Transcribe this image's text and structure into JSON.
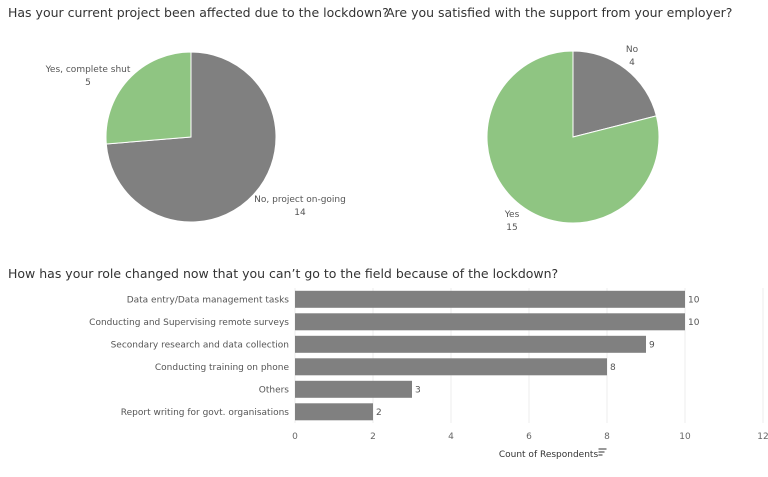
{
  "chart_data": [
    {
      "type": "pie",
      "title": "Has your current project been affected due to the lockdown?",
      "slices": [
        {
          "label": "No, project on-going",
          "value": 14,
          "color": "#808080"
        },
        {
          "label": "Yes, complete shut",
          "value": 5,
          "color": "#8fc582"
        }
      ]
    },
    {
      "type": "pie",
      "title": "Are you satisfied with the support from your employer?",
      "slices": [
        {
          "label": "No",
          "value": 4,
          "color": "#808080"
        },
        {
          "label": "Yes",
          "value": 15,
          "color": "#8fc582"
        }
      ]
    },
    {
      "type": "bar",
      "orientation": "horizontal",
      "title": "How has your role changed now that you can’t go to the field because of the lockdown?",
      "categories": [
        "Data entry/Data management tasks",
        "Conducting and Supervising remote surveys",
        "Secondary research and data collection",
        "Conducting training on phone",
        "Others",
        "Report writing for govt. organisations"
      ],
      "values": [
        10,
        10,
        9,
        8,
        3,
        2
      ],
      "xlabel": "Count of Respondents",
      "xlim": [
        0,
        12
      ],
      "xticks": [
        "0",
        "2",
        "4",
        "6",
        "8",
        "10",
        "12"
      ],
      "bar_color": "#808080",
      "grid": true
    }
  ]
}
